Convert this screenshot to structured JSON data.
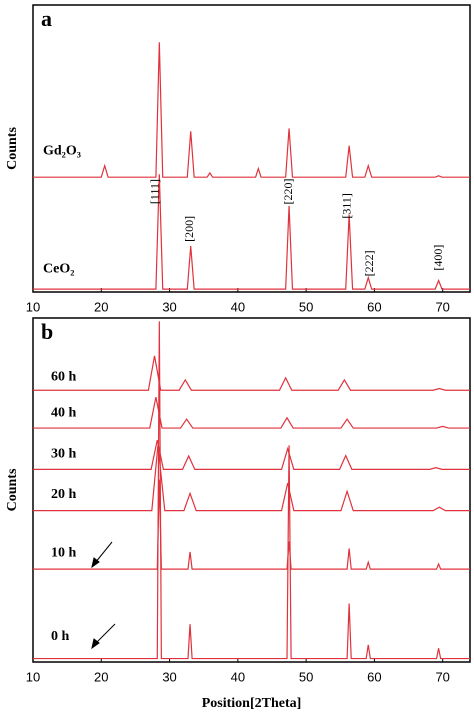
{
  "chart_data": [
    {
      "type": "line",
      "panel": "a",
      "ylabel": "Counts",
      "xlim": [
        10,
        74
      ],
      "ylim": [
        0,
        100
      ],
      "xticks": [
        10,
        20,
        30,
        40,
        50,
        60,
        70
      ],
      "x": [
        10,
        20,
        20.5,
        21,
        28,
        28.5,
        29,
        32.6,
        33.1,
        33.6,
        35.5,
        35.9,
        36.3,
        42.6,
        43,
        43.4,
        47,
        47.5,
        48,
        55.8,
        56.3,
        56.8,
        58.6,
        59.1,
        59.6,
        68.9,
        69.4,
        69.9,
        74
      ],
      "series": [
        {
          "name": "Gd₂O₃",
          "color": "#e0323c",
          "values": [
            40,
            40,
            44,
            40,
            40,
            87,
            40,
            40,
            56,
            40,
            40,
            41.5,
            40,
            40,
            43,
            40,
            40,
            57,
            40,
            40,
            51,
            40,
            40,
            44,
            40,
            40,
            40.5,
            40,
            40
          ]
        },
        {
          "name": "CeO₂",
          "color": "#e0323c",
          "values": [
            1,
            1,
            1,
            1,
            1,
            41,
            1,
            1,
            16,
            1,
            1,
            1,
            1,
            1,
            1,
            1,
            1,
            30,
            1,
            1,
            27,
            1,
            1,
            5,
            1,
            1,
            4,
            1,
            1
          ]
        }
      ],
      "annotations": [
        {
          "text": "[111]",
          "x": 28,
          "y": 35
        },
        {
          "text": "[200]",
          "x": 33,
          "y": 22
        },
        {
          "text": "[220]",
          "x": 47.5,
          "y": 35
        },
        {
          "text": "[311]",
          "x": 56.1,
          "y": 30
        },
        {
          "text": "[222]",
          "x": 59.4,
          "y": 10
        },
        {
          "text": "[400]",
          "x": 69.5,
          "y": 12
        }
      ]
    },
    {
      "type": "line",
      "panel": "b",
      "ylabel": "Counts",
      "xlabel": "Position[2Theta]",
      "xlim": [
        10,
        74
      ],
      "ylim": [
        0,
        100
      ],
      "xticks": [
        10,
        20,
        30,
        40,
        50,
        60,
        70
      ],
      "series": [
        {
          "name": "60 h",
          "color": "#e0323c",
          "x": [
            10,
            26.9,
            27.8,
            28.7,
            31.4,
            32.3,
            33.2,
            46.1,
            47,
            47.9,
            54.7,
            55.6,
            56.5,
            68.6,
            69.5,
            70.4,
            74
          ],
          "values": [
            79,
            79,
            89,
            79,
            79,
            82,
            79,
            79,
            82.6,
            79,
            79,
            82,
            79,
            79,
            79.5,
            79,
            79
          ]
        },
        {
          "name": "40 h",
          "color": "#e0323c",
          "x": [
            10,
            27.1,
            28,
            28.9,
            31.6,
            32.5,
            33.4,
            46.3,
            47.2,
            48.1,
            55.1,
            56,
            56.9,
            69.1,
            70,
            70.9,
            74
          ],
          "values": [
            68,
            68,
            77,
            68,
            68,
            70.6,
            68,
            68,
            71,
            68,
            68,
            70.6,
            68,
            68,
            68.5,
            68,
            68
          ]
        },
        {
          "name": "30 h",
          "color": "#e0323c",
          "x": [
            10,
            27.3,
            28.2,
            29.1,
            31.9,
            32.8,
            33.7,
            46.4,
            47.3,
            48.2,
            54.9,
            55.8,
            56.7,
            68.1,
            69,
            69.9,
            74
          ],
          "values": [
            56,
            56,
            64.5,
            56,
            56,
            59.9,
            56,
            56,
            62,
            56,
            56,
            60,
            56,
            56,
            56.5,
            56,
            56
          ]
        },
        {
          "name": "20 h",
          "color": "#e0323c",
          "x": [
            10,
            27.4,
            28.3,
            29.3,
            32.1,
            33,
            33.9,
            46.4,
            47.3,
            48.2,
            55.1,
            56,
            56.9,
            68.6,
            69.5,
            70.4,
            74
          ],
          "values": [
            44,
            44,
            63,
            44,
            44,
            49,
            44,
            44,
            52,
            44,
            44,
            49.6,
            44,
            44,
            45,
            44,
            44
          ]
        },
        {
          "name": "10 h",
          "color": "#e0323c",
          "x": [
            10,
            28.2,
            28.5,
            28.8,
            32.7,
            33,
            33.3,
            47.2,
            47.5,
            47.8,
            56,
            56.3,
            56.6,
            58.8,
            59.1,
            59.4,
            69.1,
            69.4,
            69.7,
            74
          ],
          "values": [
            27,
            27,
            53,
            27,
            27,
            32,
            27,
            27,
            35,
            27,
            27,
            33,
            27,
            27,
            29,
            27,
            27,
            28.5,
            27,
            27
          ]
        },
        {
          "name": "0 h",
          "color": "#e0323c",
          "x": [
            10,
            28.2,
            28.5,
            28.8,
            32.7,
            33,
            33.3,
            47.2,
            47.5,
            47.8,
            56,
            56.3,
            56.6,
            58.8,
            59.1,
            59.4,
            69.1,
            69.4,
            69.7,
            74
          ],
          "values": [
            1,
            1,
            99,
            1,
            1,
            11,
            1,
            1,
            63,
            1,
            1,
            17,
            1,
            1,
            5,
            1,
            1,
            4,
            1,
            1
          ]
        }
      ]
    }
  ]
}
